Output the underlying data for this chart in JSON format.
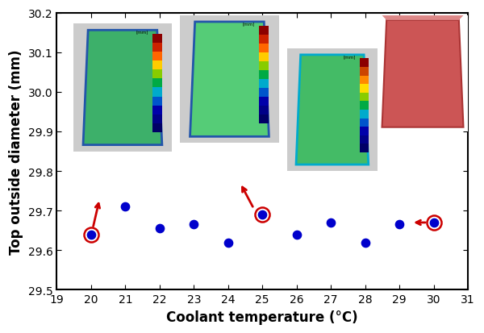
{
  "x_data": [
    20,
    21,
    22,
    23,
    24,
    25,
    26,
    27,
    28,
    29,
    30
  ],
  "y_data": [
    29.64,
    29.71,
    29.655,
    29.665,
    29.62,
    29.69,
    29.64,
    29.67,
    29.62,
    29.665,
    29.67
  ],
  "dot_color": "#0000cc",
  "circle_color": "#cc0000",
  "arrow_color": "#cc0000",
  "xlabel": "Coolant temperature (°C)",
  "ylabel": "Top outside diameter (mm)",
  "xlim": [
    19,
    31
  ],
  "ylim": [
    29.5,
    30.2
  ],
  "xticks": [
    19,
    20,
    21,
    22,
    23,
    24,
    25,
    26,
    27,
    28,
    29,
    30,
    31
  ],
  "yticks": [
    29.5,
    29.6,
    29.7,
    29.8,
    29.9,
    30.0,
    30.1,
    30.2
  ],
  "dot_size": 55,
  "axis_linewidth": 1.5,
  "tick_fontsize": 10,
  "label_fontsize": 12
}
